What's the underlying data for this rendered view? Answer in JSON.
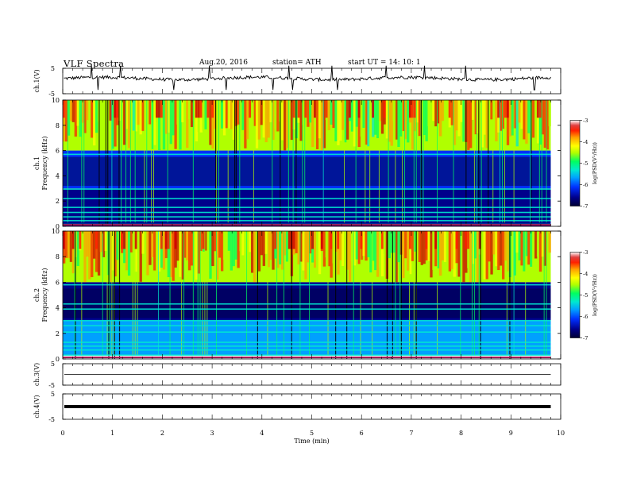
{
  "header": {
    "title": "VLF  Spectra",
    "date": "Aug.20, 2016",
    "station": "station= ATH",
    "start": "start  UT  =    14: 10: 1"
  },
  "chart_data": [
    {
      "type": "line",
      "ylabel": "ch.1(V)",
      "ylim": [
        -5,
        5
      ],
      "yticks": [
        "5",
        "-5"
      ],
      "x_extent_min": 9.8,
      "description_value": "noisy waveform around +1 V with sparse spikes",
      "baseline": 1.0
    },
    {
      "type": "heatmap",
      "ylabel_lines": [
        "ch.1",
        "Frequency  (kHz)"
      ],
      "ylim": [
        0,
        10
      ],
      "yticks": [
        "0",
        "2",
        "4",
        "6",
        "8",
        "10"
      ],
      "zlabel": "log(PSD(V²/Hz))",
      "zlim": [
        -7,
        -3
      ],
      "zticks": [
        "-3",
        "-4",
        "-5",
        "-6",
        "-7"
      ],
      "colormap": [
        "#000033",
        "#00008b",
        "#0030ff",
        "#00a0ff",
        "#00e8d0",
        "#00ff60",
        "#b0ff00",
        "#ffff00",
        "#ffa000",
        "#ff2000",
        "#d00000",
        "#ffffff"
      ],
      "bands_khz": [
        {
          "from": 6.0,
          "to": 10.0,
          "level": -4.6
        },
        {
          "from": 3.0,
          "to": 6.0,
          "level": -6.2
        },
        {
          "from": 0.0,
          "to": 3.0,
          "level": -6.6
        }
      ],
      "lines_khz": [
        0.15,
        0.45,
        0.75,
        1.1,
        1.5,
        2.2,
        2.95,
        5.7
      ]
    },
    {
      "type": "heatmap",
      "ylabel_lines": [
        "ch.2",
        "Frequency  (kHz)"
      ],
      "ylim": [
        0,
        10
      ],
      "yticks": [
        "0",
        "2",
        "4",
        "6",
        "8",
        "10"
      ],
      "zlabel": "log(PSD(V²/Hz))",
      "zlim": [
        -7,
        -3
      ],
      "zticks": [
        "-3",
        "-4",
        "-5",
        "-6",
        "-7"
      ],
      "bands_khz": [
        {
          "from": 6.0,
          "to": 10.0,
          "level": -4.5
        },
        {
          "from": 3.0,
          "to": 6.0,
          "level": -6.3
        },
        {
          "from": 0.3,
          "to": 3.0,
          "level": -5.8
        }
      ],
      "lines_khz": [
        0.3,
        0.7,
        1.0,
        1.3,
        2.1,
        2.6,
        3.0,
        3.9,
        4.3,
        5.8
      ]
    },
    {
      "type": "line",
      "ylabel": "ch.3(V)",
      "ylim": [
        -5,
        5
      ],
      "yticks": [
        "5",
        "-5"
      ],
      "baseline": 0.0
    },
    {
      "type": "line",
      "ylabel": "ch.4(V)",
      "ylim": [
        -5,
        5
      ],
      "yticks": [
        "5",
        "-5"
      ],
      "baseline": 0.0,
      "style": "thick"
    }
  ],
  "xaxis": {
    "label": "Time  (min)",
    "xlim": [
      0,
      10
    ],
    "ticks": [
      "0",
      "1",
      "2",
      "3",
      "4",
      "5",
      "6",
      "7",
      "8",
      "9",
      "10"
    ],
    "data_end_min": 9.8
  }
}
